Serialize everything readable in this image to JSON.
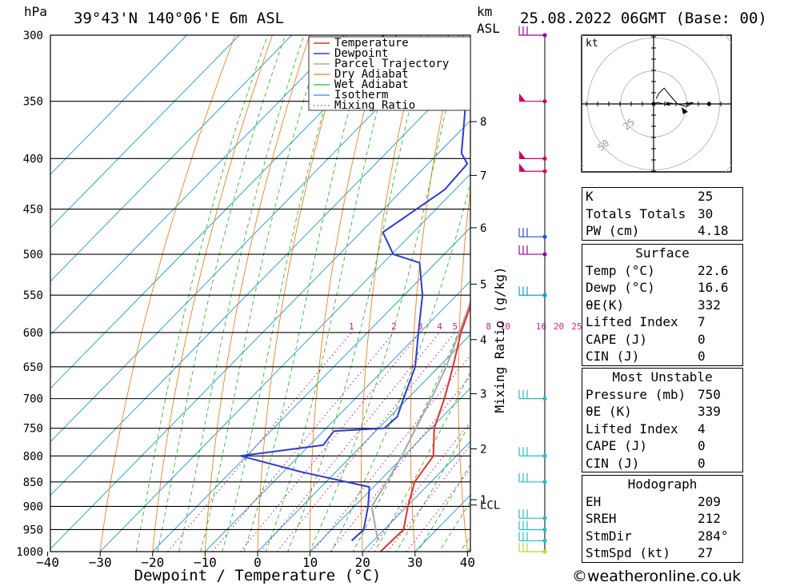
{
  "header": {
    "y_unit": "hPa",
    "location": "39°43'N 140°06'E 6m ASL",
    "km_unit_1": "km",
    "km_unit_2": "ASL",
    "datetime": "25.08.2022 06GMT (Base: 00)"
  },
  "chart_data": [
    {
      "type": "skew-t",
      "xlabel": "Dewpoint / Temperature (°C)",
      "ylabel": "hPa",
      "right_axis_label": "Mixing Ratio (g/kg)",
      "x_ticks": [
        -40,
        -30,
        -20,
        -10,
        0,
        10,
        20,
        30,
        40
      ],
      "x_range": [
        -40,
        40
      ],
      "pressure_ticks": [
        300,
        350,
        400,
        450,
        500,
        550,
        600,
        650,
        700,
        750,
        800,
        850,
        900,
        950,
        1000
      ],
      "height_km_ticks": [
        {
          "label": "8",
          "p": 367
        },
        {
          "label": "7",
          "p": 416
        },
        {
          "label": "6",
          "p": 470
        },
        {
          "label": "5",
          "p": 536
        },
        {
          "label": "4",
          "p": 610
        },
        {
          "label": "3",
          "p": 692
        },
        {
          "label": "2",
          "p": 787
        },
        {
          "label": "1",
          "p": 886
        },
        {
          "label": "LCL",
          "p": 897
        }
      ],
      "mixing_ratio_labels": [
        "1",
        "2",
        "3",
        "4",
        "5",
        "8",
        "10",
        "16",
        "20",
        "25"
      ],
      "mixing_ratio_values": [
        1,
        2,
        3,
        4,
        5,
        8,
        10,
        16,
        20,
        25
      ],
      "legend": [
        "Temperature",
        "Dewpoint",
        "Parcel Trajectory",
        "Dry Adiabat",
        "Wet Adiabat",
        "Isotherm",
        "Mixing Ratio"
      ],
      "colors": {
        "temperature": "#e8302a",
        "dewpoint": "#2d3bd8",
        "parcel": "#a8a8a8",
        "dry_adiabat": "#f08020",
        "wet_adiabat": "#2cb82c",
        "isotherm": "#1a9ad8",
        "mixing_ratio": "#d0208a"
      },
      "temperature": [
        {
          "p": 1000,
          "t": 23.4
        },
        {
          "p": 950,
          "t": 23.7
        },
        {
          "p": 900,
          "t": 20.2
        },
        {
          "p": 850,
          "t": 16.9
        },
        {
          "p": 800,
          "t": 15.6
        },
        {
          "p": 750,
          "t": 10.6
        },
        {
          "p": 700,
          "t": 7.0
        },
        {
          "p": 650,
          "t": 2.7
        },
        {
          "p": 600,
          "t": -2.2
        },
        {
          "p": 550,
          "t": -6.6
        },
        {
          "p": 510,
          "t": -11.6
        },
        {
          "p": 500,
          "t": -10.8
        },
        {
          "p": 450,
          "t": -16.2
        },
        {
          "p": 400,
          "t": -22.1
        },
        {
          "p": 370,
          "t": -26.0
        }
      ],
      "dewpoint": [
        {
          "p": 975,
          "t": 15.9
        },
        {
          "p": 950,
          "t": 16.1
        },
        {
          "p": 900,
          "t": 12.6
        },
        {
          "p": 860,
          "t": 9.2
        },
        {
          "p": 830,
          "t": -6.8
        },
        {
          "p": 800,
          "t": -21.1
        },
        {
          "p": 780,
          "t": -7.4
        },
        {
          "p": 755,
          "t": -8.0
        },
        {
          "p": 750,
          "t": 1.1
        },
        {
          "p": 730,
          "t": 1.4
        },
        {
          "p": 700,
          "t": -0.8
        },
        {
          "p": 650,
          "t": -4.5
        },
        {
          "p": 600,
          "t": -10.3
        },
        {
          "p": 550,
          "t": -16.5
        },
        {
          "p": 510,
          "t": -23.1
        },
        {
          "p": 500,
          "t": -29.7
        },
        {
          "p": 475,
          "t": -35.8
        },
        {
          "p": 430,
          "t": -32.0
        },
        {
          "p": 405,
          "t": -32.5
        },
        {
          "p": 395,
          "t": -35.6
        },
        {
          "p": 340,
          "t": -46.6
        },
        {
          "p": 330,
          "t": -72.3
        },
        {
          "p": 300,
          "t": -72.5
        }
      ],
      "parcel": [
        {
          "p": 975,
          "t": 20.9
        },
        {
          "p": 900,
          "t": 13.3
        },
        {
          "p": 850,
          "t": 11.6
        },
        {
          "p": 800,
          "t": 9.6
        },
        {
          "p": 750,
          "t": 7.1
        },
        {
          "p": 700,
          "t": 4.5
        },
        {
          "p": 650,
          "t": 1.4
        },
        {
          "p": 600,
          "t": -2.5
        },
        {
          "p": 550,
          "t": -6.9
        },
        {
          "p": 500,
          "t": -12.3
        },
        {
          "p": 450,
          "t": -18.7
        },
        {
          "p": 400,
          "t": -26.2
        },
        {
          "p": 350,
          "t": -35.2
        },
        {
          "p": 310,
          "t": -43.6
        }
      ]
    },
    {
      "type": "hodograph",
      "unit": "kt",
      "ring_labels": [
        "25",
        "50",
        "75"
      ],
      "points_kt": [
        {
          "u": 3,
          "v": 1
        },
        {
          "u": 8,
          "v": 0
        },
        {
          "u": 12,
          "v": -1
        },
        {
          "u": 10,
          "v": 1
        },
        {
          "u": 16,
          "v": 0
        },
        {
          "u": 22,
          "v": 0
        },
        {
          "u": 30,
          "v": 1
        },
        {
          "u": 25,
          "v": -2
        },
        {
          "u": 18,
          "v": 0
        },
        {
          "u": 12,
          "v": 7
        },
        {
          "u": 8,
          "v": 12
        },
        {
          "u": 4,
          "v": 8
        },
        {
          "u": 2,
          "v": 4
        }
      ],
      "storm_motion_kt": {
        "u": 26,
        "v": -6
      }
    }
  ],
  "wind_barbs": [
    {
      "p": 300,
      "color": "#a000a0"
    },
    {
      "p": 350,
      "color": "#d0006a"
    },
    {
      "p": 400,
      "color": "#d0006a"
    },
    {
      "p": 412,
      "color": "#d0006a"
    },
    {
      "p": 480,
      "color": "#2050e0"
    },
    {
      "p": 500,
      "color": "#a000a0"
    },
    {
      "p": 550,
      "color": "#00a8c8"
    },
    {
      "p": 700,
      "color": "#20c0c0"
    },
    {
      "p": 800,
      "color": "#20c0c0"
    },
    {
      "p": 850,
      "color": "#20c0c0"
    },
    {
      "p": 925,
      "color": "#20c0c0"
    },
    {
      "p": 950,
      "color": "#20c0c0"
    },
    {
      "p": 975,
      "color": "#20c0c0"
    },
    {
      "p": 1000,
      "color": "#b0e020"
    }
  ],
  "indices": [
    {
      "label": "K",
      "value": "25"
    },
    {
      "label": "Totals Totals",
      "value": "30"
    },
    {
      "label": "PW (cm)",
      "value": "4.18"
    }
  ],
  "surface": {
    "title": "Surface",
    "rows": [
      {
        "label": "Temp (°C)",
        "value": "22.6"
      },
      {
        "label": "Dewp (°C)",
        "value": "16.6"
      },
      {
        "label": "θE(K)",
        "value": "332"
      },
      {
        "label": "Lifted Index",
        "value": "7"
      },
      {
        "label": "CAPE (J)",
        "value": "0"
      },
      {
        "label": "CIN (J)",
        "value": "0"
      }
    ]
  },
  "most_unstable": {
    "title": "Most Unstable",
    "rows": [
      {
        "label": "Pressure (mb)",
        "value": "750"
      },
      {
        "label": "θE (K)",
        "value": "339"
      },
      {
        "label": "Lifted Index",
        "value": "4"
      },
      {
        "label": "CAPE (J)",
        "value": "0"
      },
      {
        "label": "CIN (J)",
        "value": "0"
      }
    ]
  },
  "hodograph_table": {
    "title": "Hodograph",
    "rows": [
      {
        "label": "EH",
        "value": "209"
      },
      {
        "label": "SREH",
        "value": "212"
      },
      {
        "label": "StmDir",
        "value": "284°"
      },
      {
        "label": "StmSpd (kt)",
        "value": "27"
      }
    ]
  },
  "credit": "©weatheronline.co.uk"
}
